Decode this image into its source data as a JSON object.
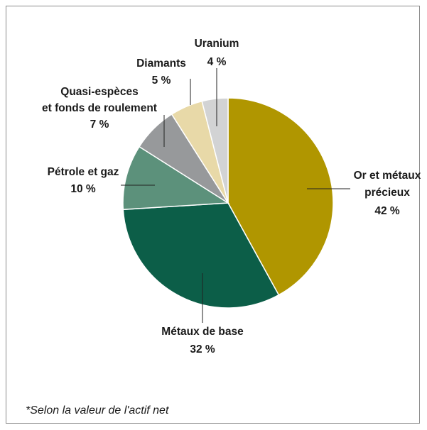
{
  "chart_data": {
    "type": "pie",
    "title": "",
    "slices": [
      {
        "label_lines": [
          "Or et métaux",
          "précieux"
        ],
        "value_label": "42 %",
        "value": 42,
        "color": "#b09600"
      },
      {
        "label_lines": [
          "Métaux de base"
        ],
        "value_label": "32 %",
        "value": 32,
        "color": "#0c5e48"
      },
      {
        "label_lines": [
          "Pétrole et gaz"
        ],
        "value_label": "10 %",
        "value": 10,
        "color": "#5c917b"
      },
      {
        "label_lines": [
          "Quasi-espèces",
          "et fonds de roulement"
        ],
        "value_label": "7 %",
        "value": 7,
        "color": "#97999b"
      },
      {
        "label_lines": [
          "Diamants"
        ],
        "value_label": "5 %",
        "value": 5,
        "color": "#e8d9a8"
      },
      {
        "label_lines": [
          "Uranium"
        ],
        "value_label": "4 %",
        "value": 4,
        "color": "#d2d3d4"
      }
    ]
  },
  "footnote": "*Selon la valeur de l'actif net"
}
